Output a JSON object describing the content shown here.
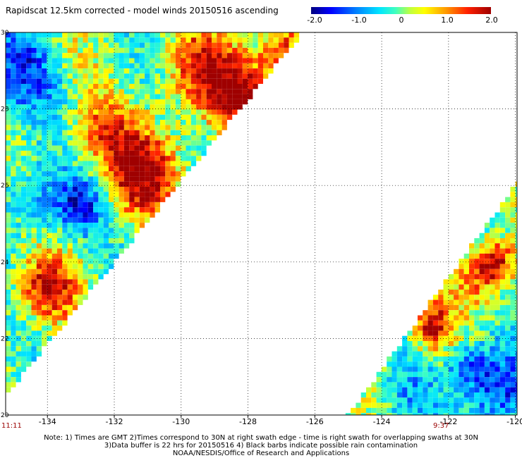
{
  "title": "Rapidscat 12.5km corrected - model winds 20150516 ascending",
  "colorbar": {
    "labels": [
      "-2.0",
      "-1.0",
      "0",
      "1.0",
      "2.0"
    ],
    "values": [
      -2.0,
      -1.0,
      0,
      1.0,
      2.0
    ],
    "colors": [
      "#00007f",
      "#0000ff",
      "#00e5ff",
      "#ffff00",
      "#ff2000",
      "#9f0000"
    ]
  },
  "map": {
    "lon_range": [
      -135.25,
      -119.95
    ],
    "lat_range": [
      20,
      30
    ],
    "x_ticks": [
      -134,
      -132,
      -130,
      -128,
      -126,
      -124,
      -122,
      -120
    ],
    "x_tick_labels": [
      "-134",
      "-132",
      "-130",
      "-128",
      "-126",
      "-124",
      "-122",
      "-120"
    ],
    "y_ticks": [
      20,
      22,
      24,
      26,
      28,
      30
    ],
    "y_tick_labels": [
      "20",
      "22",
      "24",
      "26",
      "28",
      "30"
    ],
    "grid": "dotted",
    "swaths": [
      {
        "name": "west",
        "time_label": "11:11",
        "edge": [
          [
            -135.25,
            20.5
          ],
          [
            -126.35,
            30
          ]
        ]
      },
      {
        "name": "east",
        "time_label": "9:37",
        "edge": [
          [
            -125.0,
            20
          ],
          [
            -120.0,
            26.0
          ]
        ]
      }
    ],
    "hotspots": [
      {
        "lon": -131.2,
        "lat": 26.4,
        "value": 2.0,
        "radius": 1.2
      },
      {
        "lon": -129.3,
        "lat": 29.0,
        "value": 1.7,
        "radius": 1.1
      },
      {
        "lon": -128.0,
        "lat": 28.3,
        "value": 1.8,
        "radius": 0.9
      },
      {
        "lon": -127.0,
        "lat": 29.6,
        "value": 1.4,
        "radius": 0.8
      },
      {
        "lon": -134.0,
        "lat": 23.3,
        "value": 1.8,
        "radius": 0.9
      },
      {
        "lon": -132.5,
        "lat": 27.5,
        "value": 0.9,
        "radius": 0.9
      },
      {
        "lon": -134.7,
        "lat": 29.0,
        "value": -1.2,
        "radius": 1.1
      },
      {
        "lon": -134.3,
        "lat": 25.6,
        "value": -0.8,
        "radius": 1.0
      },
      {
        "lon": -133.0,
        "lat": 25.5,
        "value": -1.4,
        "radius": 0.7
      },
      {
        "lon": -133.2,
        "lat": 29.4,
        "value": 0.3,
        "radius": 0.8
      },
      {
        "lon": -122.5,
        "lat": 22.3,
        "value": 1.8,
        "radius": 0.6
      },
      {
        "lon": -120.6,
        "lat": 24.0,
        "value": 1.9,
        "radius": 0.6
      },
      {
        "lon": -121.2,
        "lat": 23.5,
        "value": 1.0,
        "radius": 0.8
      },
      {
        "lon": -120.5,
        "lat": 20.7,
        "value": -1.6,
        "radius": 1.0
      },
      {
        "lon": -123.2,
        "lat": 20.4,
        "value": -0.6,
        "radius": 0.8
      },
      {
        "lon": -121.4,
        "lat": 21.3,
        "value": -1.0,
        "radius": 0.6
      }
    ]
  },
  "notes": {
    "line1": "Note: 1) Times are GMT 2)Times correspond to 30N at right swath edge - time is right swath for overlapping swaths at 30N",
    "line2": "3)Data buffer is 22 hrs for 20150516 4) Black barbs indicate possible rain contamination",
    "line3": "NOAA/NESDIS/Office of Research and Applications"
  }
}
